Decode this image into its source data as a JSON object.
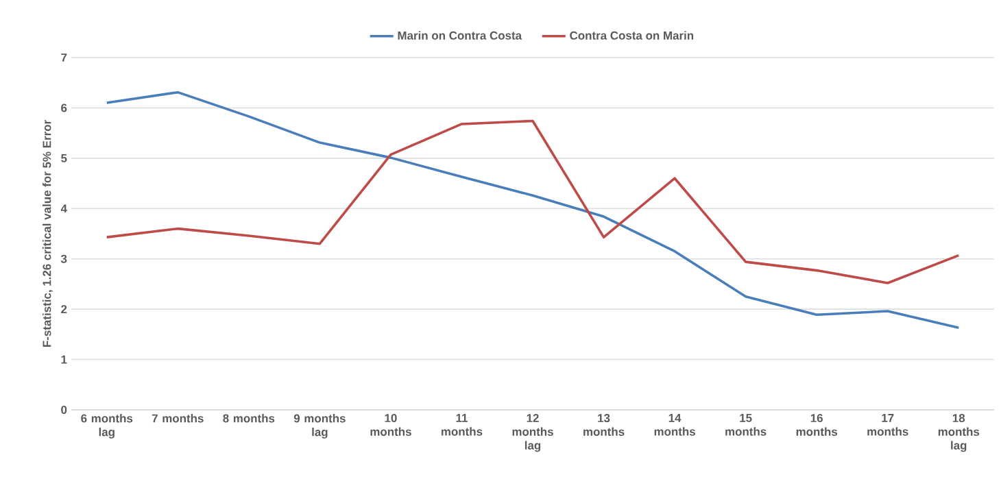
{
  "chart_data": {
    "type": "line",
    "ylabel": "F-statistic, 1.26 critical value for 5% Error",
    "categories": [
      "6 months lag",
      "7 months",
      "8 months",
      "9 months lag",
      "10 months",
      "11 months",
      "12 months lag",
      "13 months",
      "14 months",
      "15 months",
      "16 months",
      "17 months",
      "18 months lag"
    ],
    "series": [
      {
        "name": "Marin on Contra Costa",
        "color": "#4a7ebb",
        "values": [
          6.1,
          6.31,
          5.83,
          5.31,
          5.01,
          4.63,
          4.26,
          3.84,
          3.15,
          2.25,
          1.89,
          1.96,
          1.63
        ]
      },
      {
        "name": "Contra Costa on Marin",
        "color": "#be4b48",
        "values": [
          3.43,
          3.6,
          3.46,
          3.3,
          5.07,
          5.68,
          5.74,
          3.43,
          4.6,
          2.94,
          2.77,
          2.52,
          3.07
        ]
      }
    ],
    "ylim": [
      0,
      7
    ],
    "yticks": [
      0,
      1,
      2,
      3,
      4,
      5,
      6,
      7
    ],
    "grid": "y",
    "legend": "top",
    "marker": "none",
    "line_style": "solid"
  }
}
